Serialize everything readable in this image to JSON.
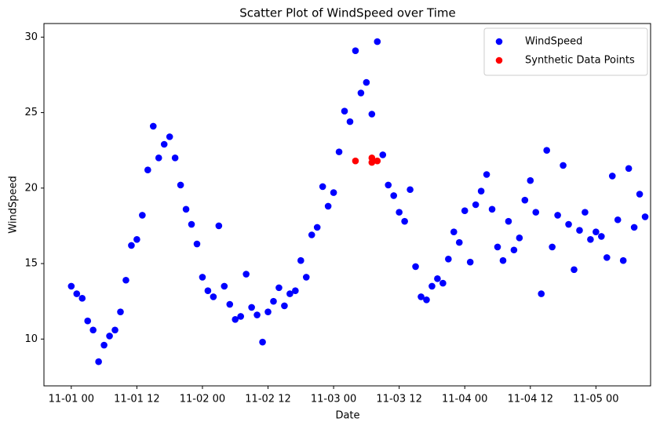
{
  "chart_data": {
    "type": "scatter",
    "title": "Scatter Plot of WindSpeed over Time",
    "x_label": "Date",
    "y_label": "WindSpeed",
    "xlim": [
      "10-31 19",
      "11-05 10"
    ],
    "xticks": [
      "11-01 00",
      "11-01 12",
      "11-02 00",
      "11-02 12",
      "11-03 00",
      "11-03 12",
      "11-04 00",
      "11-04 12",
      "11-05 00"
    ],
    "ylim": [
      6.9,
      30.9
    ],
    "yticks": [
      10,
      15,
      20,
      25,
      30
    ],
    "grid": false,
    "legend": "upper right",
    "series": [
      {
        "name": "WindSpeed",
        "color": "#0000ff",
        "x": [
          "11-01 00",
          "11-01 01",
          "11-01 02",
          "11-01 03",
          "11-01 04",
          "11-01 05",
          "11-01 06",
          "11-01 07",
          "11-01 08",
          "11-01 09",
          "11-01 10",
          "11-01 11",
          "11-01 12",
          "11-01 13",
          "11-01 14",
          "11-01 15",
          "11-01 16",
          "11-01 17",
          "11-01 18",
          "11-01 19",
          "11-01 20",
          "11-01 21",
          "11-01 22",
          "11-01 23",
          "11-02 00",
          "11-02 01",
          "11-02 02",
          "11-02 03",
          "11-02 04",
          "11-02 05",
          "11-02 06",
          "11-02 07",
          "11-02 08",
          "11-02 09",
          "11-02 10",
          "11-02 11",
          "11-02 12",
          "11-02 13",
          "11-02 14",
          "11-02 15",
          "11-02 16",
          "11-02 17",
          "11-02 18",
          "11-02 19",
          "11-02 20",
          "11-02 21",
          "11-02 22",
          "11-02 23",
          "11-03 00",
          "11-03 01",
          "11-03 02",
          "11-03 03",
          "11-03 04",
          "11-03 05",
          "11-03 06",
          "11-03 07",
          "11-03 08",
          "11-03 09",
          "11-03 10",
          "11-03 11",
          "11-03 12",
          "11-03 13",
          "11-03 14",
          "11-03 15",
          "11-03 16",
          "11-03 17",
          "11-03 18",
          "11-03 19",
          "11-03 20",
          "11-03 21",
          "11-03 22",
          "11-03 23",
          "11-04 00",
          "11-04 01",
          "11-04 02",
          "11-04 03",
          "11-04 04",
          "11-04 05",
          "11-04 06",
          "11-04 07",
          "11-04 08",
          "11-04 09",
          "11-04 10",
          "11-04 11",
          "11-04 12",
          "11-04 13",
          "11-04 14",
          "11-04 15",
          "11-04 16",
          "11-04 17",
          "11-04 18",
          "11-04 19",
          "11-04 20",
          "11-04 21",
          "11-04 22",
          "11-04 23",
          "11-05 00",
          "11-05 01",
          "11-05 02",
          "11-05 03",
          "11-05 04",
          "11-05 05",
          "11-05 06",
          "11-05 07",
          "11-05 08",
          "11-05 09"
        ],
        "values": [
          13.5,
          13.0,
          12.7,
          11.2,
          10.6,
          8.5,
          9.6,
          10.2,
          10.6,
          11.8,
          13.9,
          16.2,
          16.6,
          18.2,
          21.2,
          24.1,
          22.0,
          22.9,
          23.4,
          22.0,
          20.2,
          18.6,
          17.6,
          16.3,
          14.1,
          13.2,
          12.8,
          17.5,
          13.5,
          12.3,
          11.3,
          11.5,
          14.3,
          12.1,
          11.6,
          9.8,
          11.8,
          12.5,
          13.4,
          12.2,
          13.0,
          13.2,
          15.2,
          14.1,
          16.9,
          17.4,
          20.1,
          18.8,
          19.7,
          22.4,
          25.1,
          24.4,
          29.1,
          26.3,
          27.0,
          24.9,
          29.7,
          22.2,
          20.2,
          19.5,
          18.4,
          17.8,
          19.9,
          14.8,
          12.8,
          12.6,
          13.5,
          14.0,
          13.7,
          15.3,
          17.1,
          16.4,
          18.5,
          15.1,
          18.9,
          19.8,
          20.9,
          18.6,
          16.1,
          15.2,
          17.8,
          15.9,
          16.7,
          19.2,
          20.5,
          18.4,
          13.0,
          22.5,
          16.1,
          18.2,
          21.5,
          17.6,
          14.6,
          17.2,
          18.4,
          16.6,
          17.1,
          16.8,
          15.4,
          20.8,
          17.9,
          15.2,
          21.3,
          17.4,
          19.6,
          18.1
        ]
      },
      {
        "name": "Synthetic Data Points",
        "color": "#ff0000",
        "x": [
          "11-03 04",
          "11-03 07",
          "11-03 07",
          "11-03 08"
        ],
        "values": [
          21.8,
          22.0,
          21.7,
          21.8
        ]
      }
    ]
  }
}
